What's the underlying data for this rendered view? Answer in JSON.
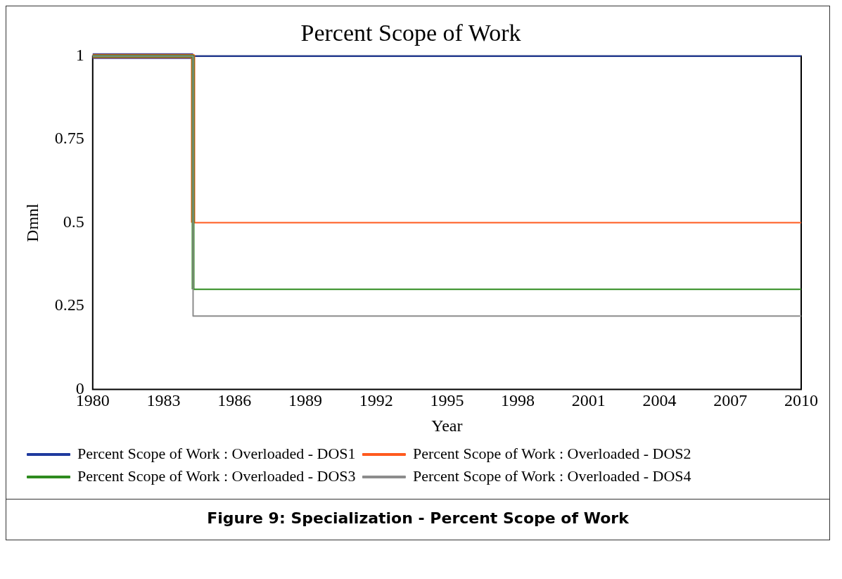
{
  "chart_data": {
    "type": "step",
    "title": "Percent Scope of Work",
    "xlabel": "Year",
    "ylabel": "Dmnl",
    "xlim": [
      1980,
      2010
    ],
    "xticks": [
      1980,
      1983,
      1986,
      1989,
      1992,
      1995,
      1998,
      2001,
      2004,
      2007,
      2010
    ],
    "ylim": [
      0,
      1
    ],
    "yticks": [
      0,
      0.25,
      0.5,
      0.75,
      1
    ],
    "grid": false,
    "legend": "bottom",
    "marker": "none",
    "x": [
      1980,
      1984.25,
      2010
    ],
    "series": [
      {
        "name": "Percent Scope of Work : Overloaded - DOS1",
        "color": "#1f3a9e",
        "values": [
          1,
          1,
          1
        ]
      },
      {
        "name": "Percent Scope of Work : Overloaded - DOS2",
        "color": "#ff5a1e",
        "values": [
          1,
          0.5,
          0.5
        ]
      },
      {
        "name": "Percent Scope of Work : Overloaded - DOS3",
        "color": "#2e8b1e",
        "values": [
          1,
          0.3,
          0.3
        ]
      },
      {
        "name": "Percent Scope of Work : Overloaded - DOS4",
        "color": "#8c8c8c",
        "values": [
          1,
          0.22,
          0.22
        ]
      }
    ],
    "annotations": [
      "Figure 9: Specialization - Percent Scope of Work"
    ]
  }
}
